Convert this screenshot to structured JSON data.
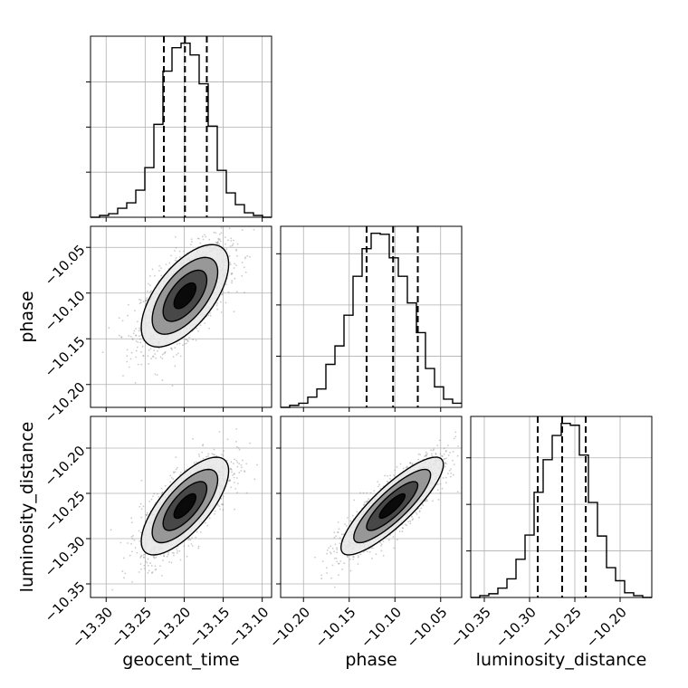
{
  "chart_data": {
    "type": "corner",
    "parameters": [
      "geocent_time",
      "phase",
      "luminosity_distance"
    ],
    "axes": {
      "geocent_time": {
        "lim": [
          -13.32,
          -13.088
        ],
        "ticks": [
          -13.3,
          -13.25,
          -13.2,
          -13.15,
          -13.1
        ],
        "tick_labels": [
          "−13.30",
          "−13.25",
          "−13.20",
          "−13.15",
          "−13.10"
        ]
      },
      "phase": {
        "lim": [
          -10.225,
          -10.027
        ],
        "ticks": [
          -10.2,
          -10.15,
          -10.1,
          -10.05
        ],
        "tick_labels": [
          "−10.20",
          "−10.15",
          "−10.10",
          "−10.05"
        ]
      },
      "luminosity_distance": {
        "lim": [
          -10.365,
          -10.165
        ],
        "ticks": [
          -10.35,
          -10.3,
          -10.25,
          -10.2
        ],
        "tick_labels": [
          "−10.35",
          "−10.30",
          "−10.25",
          "−10.20"
        ]
      }
    },
    "histograms": [
      {
        "parameter": "geocent_time",
        "bin_edges": [
          -13.32,
          -13.3084,
          -13.2968,
          -13.2852,
          -13.2736,
          -13.262,
          -13.2504,
          -13.2388,
          -13.2272,
          -13.2156,
          -13.204,
          -13.1924,
          -13.1808,
          -13.1692,
          -13.1576,
          -13.146,
          -13.1344,
          -13.1228,
          -13.1112,
          -13.0996,
          -13.088
        ],
        "counts": [
          0,
          2,
          4,
          10,
          16,
          30,
          55,
          103,
          162,
          188,
          193,
          180,
          148,
          101,
          52,
          27,
          14,
          5,
          2,
          0
        ],
        "quantiles": [
          -13.226,
          -13.199,
          -13.171
        ]
      },
      {
        "parameter": "phase",
        "bin_edges": [
          -10.225,
          -10.2151,
          -10.2052,
          -10.1953,
          -10.1854,
          -10.1755,
          -10.1656,
          -10.1557,
          -10.1458,
          -10.1359,
          -10.126,
          -10.1161,
          -10.1062,
          -10.0963,
          -10.0864,
          -10.0765,
          -10.0666,
          -10.0567,
          -10.0468,
          -10.0369,
          -10.027
        ],
        "counts": [
          0,
          2,
          4,
          10,
          18,
          42,
          60,
          90,
          128,
          155,
          170,
          169,
          146,
          128,
          102,
          73,
          38,
          20,
          8,
          4
        ],
        "quantiles": [
          -10.131,
          -10.102,
          -10.075
        ]
      },
      {
        "parameter": "luminosity_distance",
        "bin_edges": [
          -10.365,
          -10.355,
          -10.345,
          -10.335,
          -10.325,
          -10.315,
          -10.305,
          -10.295,
          -10.285,
          -10.275,
          -10.265,
          -10.255,
          -10.245,
          -10.235,
          -10.225,
          -10.215,
          -10.205,
          -10.195,
          -10.185,
          -10.175,
          -10.165
        ],
        "counts": [
          0,
          2,
          4,
          10,
          20,
          41,
          67,
          113,
          148,
          174,
          187,
          185,
          153,
          102,
          66,
          32,
          18,
          5,
          2,
          0
        ],
        "quantiles": [
          -10.291,
          -10.264,
          -10.238
        ]
      }
    ],
    "pairs": [
      {
        "x": "geocent_time",
        "y": "phase",
        "mean": [
          -13.199,
          -10.103
        ],
        "std": [
          0.028,
          0.028
        ],
        "corr": 0.62
      },
      {
        "x": "geocent_time",
        "y": "luminosity_distance",
        "mean": [
          -13.199,
          -10.264
        ],
        "std": [
          0.028,
          0.027
        ],
        "corr": 0.72
      },
      {
        "x": "phase",
        "y": "luminosity_distance",
        "mean": [
          -10.103,
          -10.264
        ],
        "std": [
          0.028,
          0.027
        ],
        "corr": 0.85
      }
    ],
    "contour_levels": [
      0.5,
      1.0,
      1.5,
      2.0
    ],
    "grid": true,
    "colors": {
      "line": "#000000",
      "grid": "#b0b0b0",
      "scatter": "#8c8c8c"
    }
  }
}
